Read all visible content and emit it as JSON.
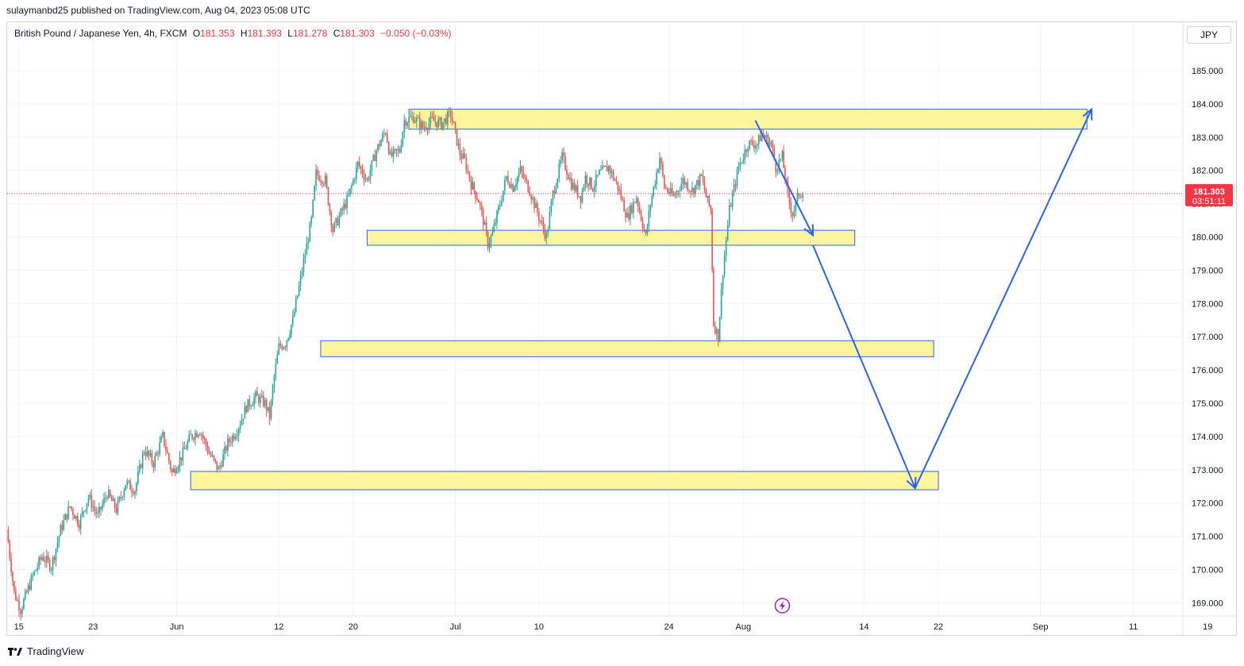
{
  "header": {
    "publisher_line": "sulaymanbd25 published on TradingView.com, Aug 04, 2023 05:08 UTC"
  },
  "legend": {
    "symbol": "British Pound / Japanese Yen, 4h, FXCM",
    "open_label": "O",
    "open": "181.353",
    "high_label": "H",
    "high": "181.393",
    "low_label": "L",
    "low": "181.278",
    "close_label": "C",
    "close": "181.303",
    "change": "−0.050 (−0.03%)"
  },
  "currency_button": "JPY",
  "price_tag": {
    "price": "181.303",
    "countdown": "03:51:11"
  },
  "footer": {
    "brand": "TradingView",
    "logo_icon": "tradingview-logo-icon"
  },
  "colors": {
    "up": "#26a69a",
    "down": "#ef5350",
    "zone_fill": "#fff59d",
    "zone_border": "#2962ff",
    "arrow": "#2962ff",
    "last_price": "#f23645",
    "event_icon": "#9c27b0"
  },
  "chart_data": {
    "type": "candlestick",
    "ylim": [
      168.6,
      185.7
    ],
    "y_ticks": [
      "169.000",
      "170.000",
      "171.000",
      "172.000",
      "173.000",
      "174.000",
      "175.000",
      "176.000",
      "177.000",
      "178.000",
      "179.000",
      "180.000",
      "181.000",
      "182.000",
      "183.000",
      "184.000",
      "185.000"
    ],
    "x_range_days": [
      0,
      126
    ],
    "x_ticks": [
      {
        "label": "15",
        "day": 1
      },
      {
        "label": "23",
        "day": 9
      },
      {
        "label": "Jun",
        "day": 18
      },
      {
        "label": "12",
        "day": 29
      },
      {
        "label": "20",
        "day": 37
      },
      {
        "label": "Jul",
        "day": 48
      },
      {
        "label": "10",
        "day": 57
      },
      {
        "label": "24",
        "day": 71
      },
      {
        "label": "Aug",
        "day": 79
      },
      {
        "label": "14",
        "day": 92
      },
      {
        "label": "22",
        "day": 100
      },
      {
        "label": "Sep",
        "day": 111
      },
      {
        "label": "11",
        "day": 121
      },
      {
        "label": "19",
        "day": 129
      }
    ],
    "path": [
      [
        -0.3,
        171.2
      ],
      [
        0.5,
        169.3
      ],
      [
        1.2,
        168.8
      ],
      [
        2.5,
        169.8
      ],
      [
        3.5,
        170.4
      ],
      [
        4.5,
        170.1
      ],
      [
        5.5,
        171.2
      ],
      [
        6.5,
        171.9
      ],
      [
        7.5,
        171.4
      ],
      [
        8.5,
        172.2
      ],
      [
        9.5,
        171.6
      ],
      [
        10.5,
        172.3
      ],
      [
        11.5,
        171.8
      ],
      [
        12.5,
        172.6
      ],
      [
        13.5,
        172.4
      ],
      [
        14.5,
        173.6
      ],
      [
        15.5,
        173.2
      ],
      [
        16.5,
        174.0
      ],
      [
        17.5,
        172.9
      ],
      [
        18.5,
        173.4
      ],
      [
        19.5,
        174.0
      ],
      [
        20.5,
        174.2
      ],
      [
        21.5,
        173.5
      ],
      [
        22.5,
        173.0
      ],
      [
        23.5,
        173.8
      ],
      [
        24.5,
        174.2
      ],
      [
        25.5,
        174.9
      ],
      [
        26.5,
        175.2
      ],
      [
        27.5,
        175.0
      ],
      [
        28.0,
        174.6
      ],
      [
        28.5,
        175.8
      ],
      [
        29.0,
        176.7
      ],
      [
        29.7,
        176.8
      ],
      [
        30.5,
        177.5
      ],
      [
        31.5,
        179.0
      ],
      [
        32.5,
        180.5
      ],
      [
        33.0,
        181.9
      ],
      [
        34.0,
        181.7
      ],
      [
        34.8,
        180.2
      ],
      [
        35.5,
        180.6
      ],
      [
        36.5,
        181.2
      ],
      [
        37.5,
        182.2
      ],
      [
        38.5,
        181.7
      ],
      [
        39.5,
        182.6
      ],
      [
        40.5,
        183.2
      ],
      [
        41.0,
        182.4
      ],
      [
        42.0,
        182.6
      ],
      [
        42.5,
        183.5
      ],
      [
        43.5,
        183.6
      ],
      [
        44.5,
        183.3
      ],
      [
        45.5,
        183.5
      ],
      [
        46.5,
        183.4
      ],
      [
        47.5,
        183.7
      ],
      [
        48.0,
        183.1
      ],
      [
        48.5,
        182.5
      ],
      [
        49.0,
        182.3
      ],
      [
        49.7,
        181.6
      ],
      [
        50.5,
        181.1
      ],
      [
        51.0,
        180.5
      ],
      [
        51.5,
        179.8
      ],
      [
        52.0,
        180.1
      ],
      [
        52.8,
        181.0
      ],
      [
        53.5,
        181.8
      ],
      [
        54.2,
        181.5
      ],
      [
        55.0,
        182.0
      ],
      [
        56.0,
        181.4
      ],
      [
        57.0,
        180.6
      ],
      [
        57.8,
        180.0
      ],
      [
        58.5,
        181.3
      ],
      [
        59.5,
        182.4
      ],
      [
        60.5,
        181.6
      ],
      [
        61.5,
        181.2
      ],
      [
        62.0,
        181.8
      ],
      [
        62.8,
        181.5
      ],
      [
        63.5,
        181.9
      ],
      [
        64.5,
        182.1
      ],
      [
        65.5,
        181.5
      ],
      [
        66.5,
        180.6
      ],
      [
        67.5,
        181.2
      ],
      [
        68.5,
        180.0
      ],
      [
        69.0,
        181.0
      ],
      [
        70.0,
        182.4
      ],
      [
        70.5,
        181.5
      ],
      [
        71.5,
        181.2
      ],
      [
        72.5,
        181.7
      ],
      [
        73.5,
        181.4
      ],
      [
        74.5,
        181.8
      ],
      [
        75.0,
        181.2
      ],
      [
        75.5,
        180.8
      ],
      [
        75.8,
        177.4
      ],
      [
        76.3,
        177.0
      ],
      [
        76.8,
        179.0
      ],
      [
        77.5,
        180.8
      ],
      [
        78.5,
        182.1
      ],
      [
        79.5,
        182.8
      ],
      [
        80.5,
        182.8
      ],
      [
        81.0,
        183.1
      ],
      [
        82.0,
        182.8
      ],
      [
        82.5,
        182.1
      ],
      [
        83.2,
        182.4
      ],
      [
        83.8,
        181.2
      ],
      [
        84.3,
        180.7
      ],
      [
        85.0,
        181.3
      ],
      [
        85.4,
        181.3
      ]
    ],
    "last_price": 181.303,
    "zones": [
      {
        "day_start": 43.0,
        "day_end": 116.0,
        "y_low": 183.24,
        "y_high": 183.84
      },
      {
        "day_start": 38.5,
        "day_end": 91.0,
        "y_low": 179.75,
        "y_high": 180.2
      },
      {
        "day_start": 33.5,
        "day_end": 99.5,
        "y_low": 176.4,
        "y_high": 176.88
      },
      {
        "day_start": 19.5,
        "day_end": 100.0,
        "y_low": 172.4,
        "y_high": 172.95
      }
    ],
    "arrows": [
      {
        "from": [
          80.3,
          183.5
        ],
        "to": [
          86.5,
          180.05
        ]
      },
      {
        "from": [
          86.5,
          179.75
        ],
        "to": [
          97.5,
          172.45
        ]
      },
      {
        "from": [
          97.5,
          172.45
        ],
        "to": [
          116.5,
          183.84
        ]
      }
    ],
    "event_marker_day": 83.2
  }
}
